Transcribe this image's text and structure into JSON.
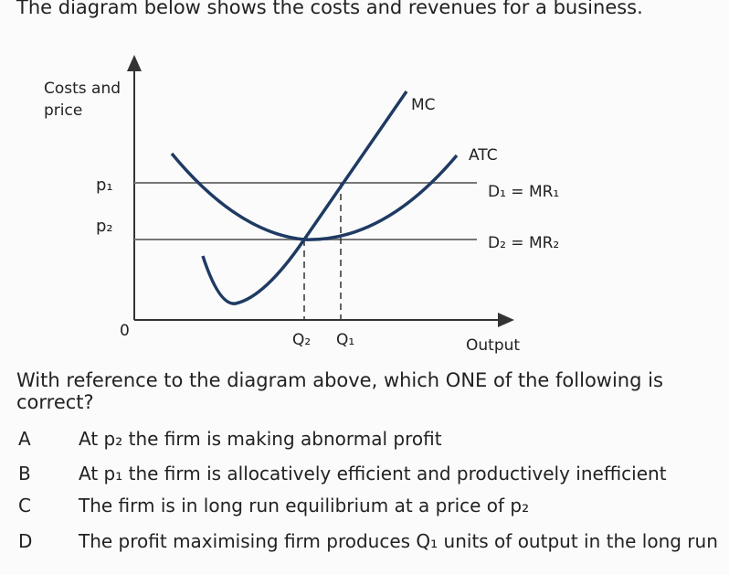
{
  "header": {
    "intro": "The diagram below shows the costs and revenues for a business."
  },
  "diagram": {
    "y_axis_label": [
      "Costs and",
      "price"
    ],
    "x_axis_label": "Output",
    "origin": "0",
    "curves": {
      "mc": "MC",
      "atc": "ATC"
    },
    "price_labels": [
      "p₁",
      "p₂"
    ],
    "demand_labels": [
      "D₁ = MR₁",
      "D₂ = MR₂"
    ],
    "quantity_labels": [
      "Q₂",
      "Q₁"
    ]
  },
  "question": "With reference to the diagram above, which ONE of the following is correct?",
  "options": [
    {
      "letter": "A",
      "text": "At p₂ the firm is making abnormal profit"
    },
    {
      "letter": "B",
      "text": "At p₁ the firm is allocatively efficient and productively inefficient"
    },
    {
      "letter": "C",
      "text": "The firm is in long run equilibrium at a price of p₂"
    },
    {
      "letter": "D",
      "text": "The profit maximising firm produces Q₁ units of output in the long run"
    }
  ]
}
